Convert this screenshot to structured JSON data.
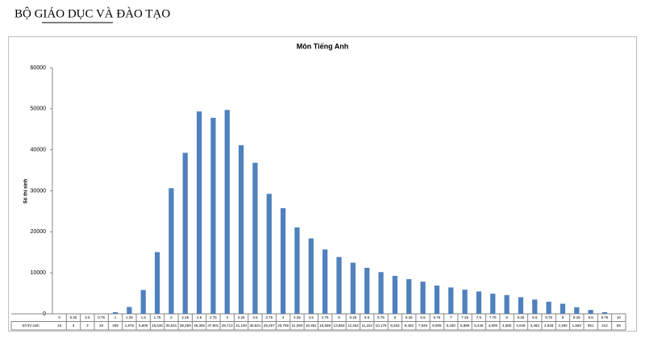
{
  "header": {
    "title": "BỘ GIÁO DỤC VÀ ĐÀO TẠO"
  },
  "chart_data": {
    "type": "bar",
    "title": "Môn Tiếng Anh",
    "y_label": "Số thí sinh",
    "table_row_label": "Số thí sinh",
    "categories": [
      "0",
      "0.25",
      "0.5",
      "0.75",
      "1",
      "1.25",
      "1.5",
      "1.75",
      "2",
      "2.25",
      "2.5",
      "2.75",
      "3",
      "3.25",
      "3.5",
      "3.75",
      "4",
      "4.25",
      "4.5",
      "4.75",
      "5",
      "5.25",
      "5.5",
      "5.75",
      "6",
      "6.25",
      "6.5",
      "6.75",
      "7",
      "7.25",
      "7.5",
      "7.75",
      "8",
      "8.25",
      "8.5",
      "8.75",
      "9",
      "9.25",
      "9.5",
      "9.75",
      "10"
    ],
    "values": [
      16,
      3,
      3,
      34,
      409,
      1676,
      5809,
      15046,
      30631,
      39259,
      49355,
      47801,
      49713,
      41100,
      36821,
      29257,
      25759,
      21060,
      18391,
      15689,
      13863,
      12464,
      11224,
      10179,
      9263,
      8453,
      7846,
      6906,
      6430,
      5889,
      5446,
      4909,
      4580,
      4049,
      3483,
      2948,
      2460,
      1593,
      951,
      412,
      55
    ],
    "value_labels": [
      "16",
      "3",
      "3",
      "34",
      "409",
      "1,676",
      "5,809",
      "15,046",
      "30,631",
      "39,259",
      "49,355",
      "47,801",
      "49,713",
      "41,100",
      "36,821",
      "29,257",
      "25,759",
      "21,060",
      "18,391",
      "15,689",
      "13,863",
      "12,464",
      "11,224",
      "10,179",
      "9,263",
      "8,453",
      "7,846",
      "6,906",
      "6,430",
      "5,889",
      "5,446",
      "4,909",
      "4,580",
      "4,049",
      "3,483",
      "2,948",
      "2,460",
      "1,593",
      "951",
      "412",
      "55"
    ],
    "color": "#4f81bd",
    "ylim": [
      0,
      60000
    ],
    "yticks": [
      0,
      10000,
      20000,
      30000,
      40000,
      50000,
      60000
    ],
    "grid": false
  }
}
